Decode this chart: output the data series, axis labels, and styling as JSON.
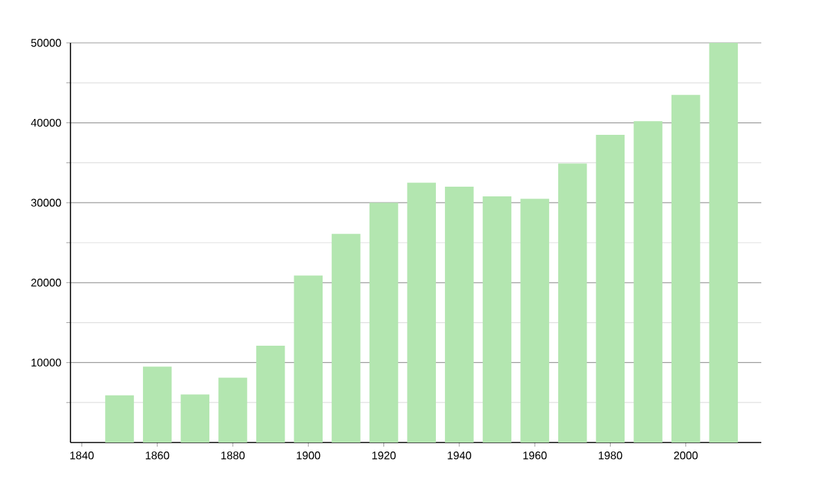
{
  "chart_data": {
    "type": "bar",
    "x": [
      1850,
      1860,
      1870,
      1880,
      1890,
      1900,
      1910,
      1920,
      1930,
      1940,
      1950,
      1960,
      1970,
      1980,
      1990,
      2000,
      2010
    ],
    "values": [
      5900,
      9500,
      6000,
      8100,
      12100,
      20900,
      26100,
      30000,
      32500,
      32000,
      30800,
      30500,
      34900,
      38500,
      40200,
      43500,
      50000
    ],
    "color": "#b3e6b0",
    "xlim": [
      1837,
      2020
    ],
    "xticks": [
      1840,
      1860,
      1880,
      1900,
      1920,
      1940,
      1960,
      1980,
      2000
    ],
    "ylim": [
      0,
      50000
    ],
    "yticks": [
      {
        "value": 5000,
        "label": null
      },
      10000,
      {
        "value": 15000,
        "label": null
      },
      20000,
      {
        "value": 25000,
        "label": null
      },
      30000,
      {
        "value": 35000,
        "label": null
      },
      40000,
      {
        "value": 45000,
        "label": null
      },
      50000
    ],
    "grid": "y"
  }
}
